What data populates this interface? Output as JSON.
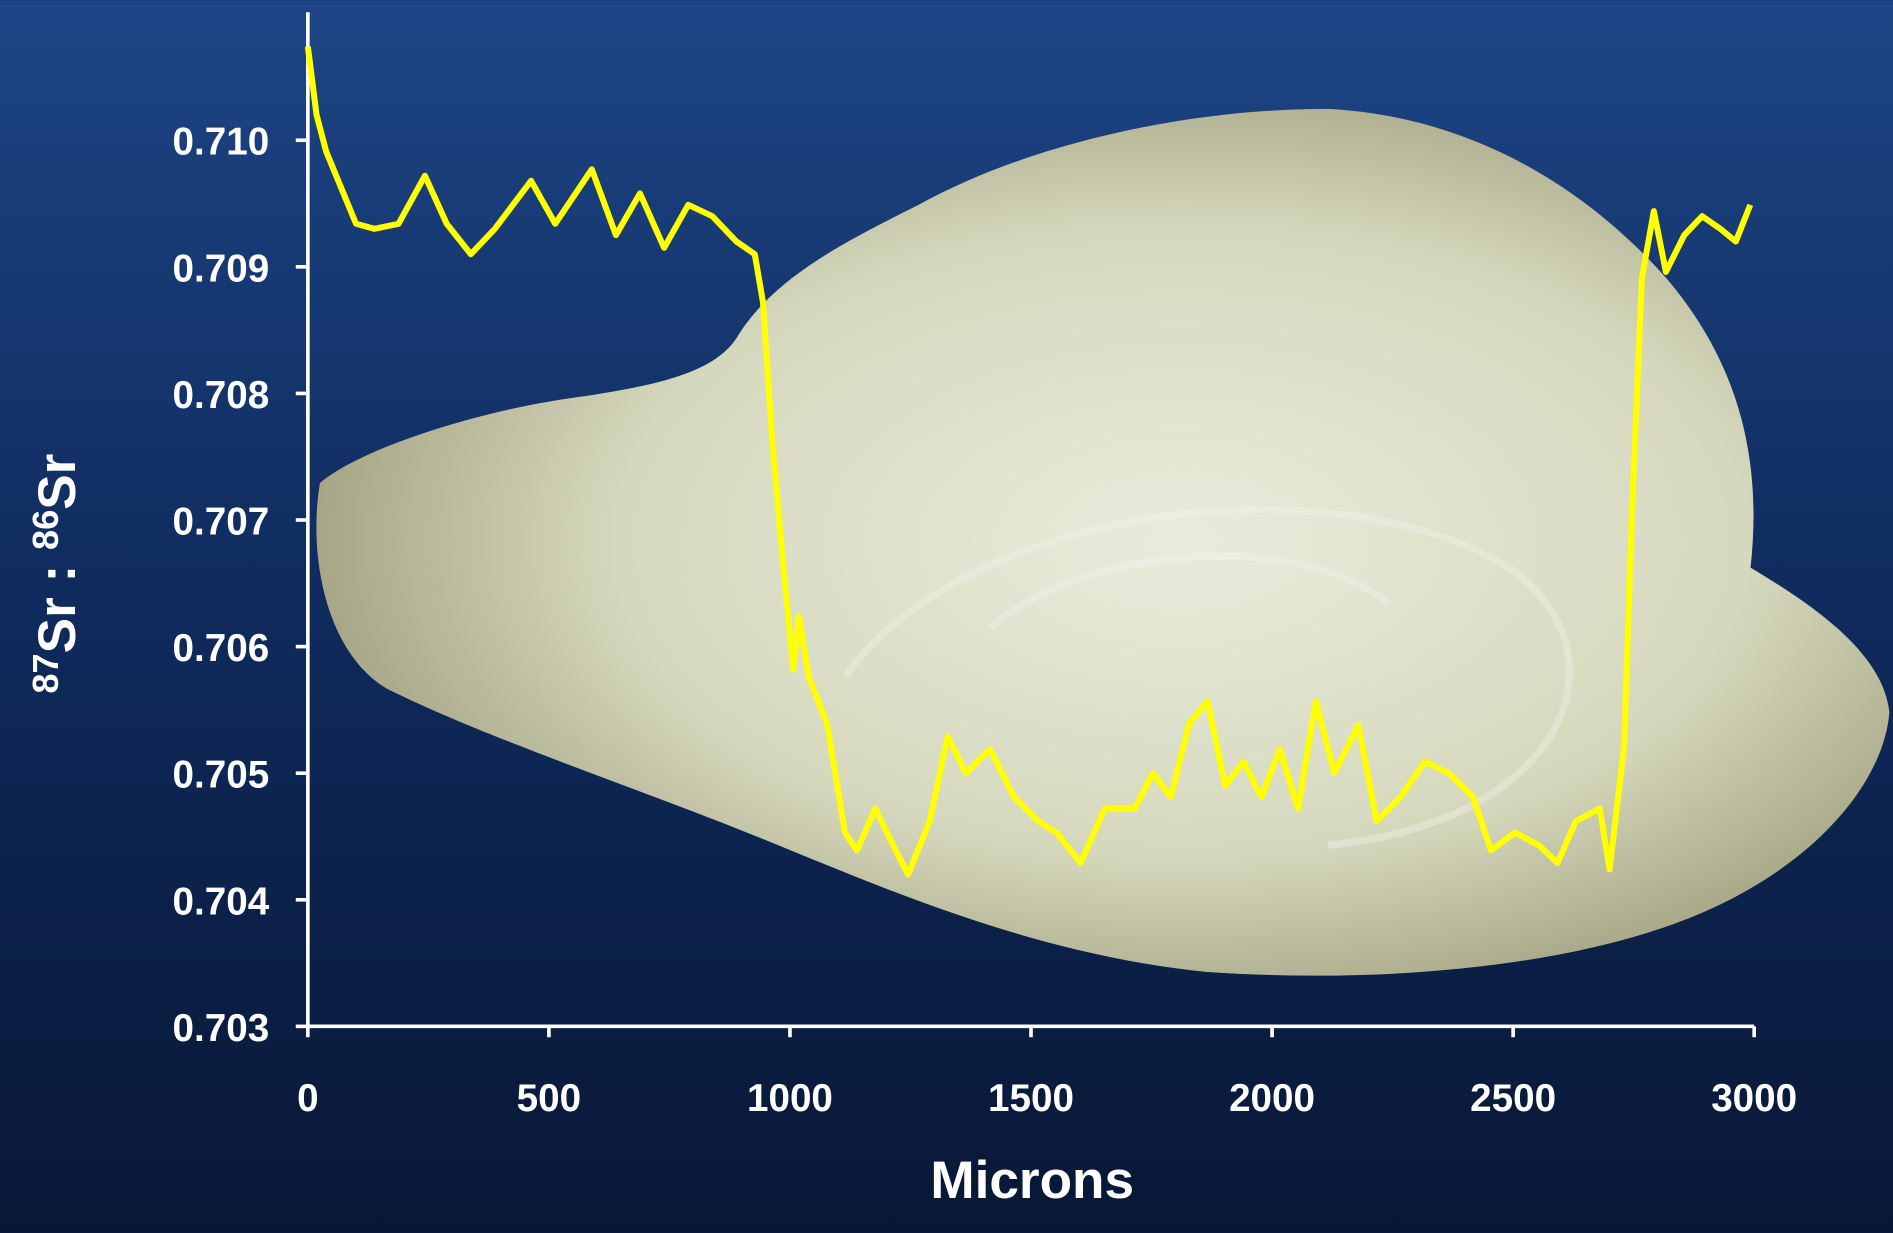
{
  "chart_data": {
    "type": "line",
    "xlabel": "Microns",
    "ylabel": [
      "87",
      "Sr : ",
      "86",
      "Sr"
    ],
    "xlim": [
      0,
      3000
    ],
    "xticks": [
      0,
      500,
      1000,
      1500,
      2000,
      2500,
      3000
    ],
    "ylim": [
      0.703,
      0.7113
    ],
    "yticks": [
      0.703,
      0.704,
      0.705,
      0.706,
      0.707,
      0.708,
      0.709,
      {
        "value": 0.71,
        "label": "0.710"
      }
    ],
    "series": [
      {
        "color": "#ffff00",
        "x": [
          0,
          18,
          38,
          63,
          100,
          138,
          188,
          243,
          288,
          338,
          388,
          463,
          513,
          589,
          639,
          689,
          739,
          789,
          839,
          889,
          927,
          944,
          964,
          989,
          1007,
          1019,
          1039,
          1077,
          1114,
          1139,
          1177,
          1214,
          1245,
          1290,
          1327,
          1365,
          1415,
          1465,
          1515,
          1553,
          1603,
          1653,
          1715,
          1753,
          1790,
          1828,
          1866,
          1903,
          1941,
          1978,
          2016,
          2054,
          2091,
          2129,
          2179,
          2217,
          2266,
          2317,
          2367,
          2417,
          2454,
          2504,
          2554,
          2592,
          2630,
          2680,
          2700,
          2730,
          2747,
          2767,
          2792,
          2817,
          2855,
          2892,
          2930,
          2962,
          2992
        ],
        "values": [
          0.71074,
          0.7102,
          0.70991,
          0.70968,
          0.70934,
          0.7093,
          0.70934,
          0.70972,
          0.70934,
          0.7091,
          0.7093,
          0.70968,
          0.70934,
          0.70977,
          0.70925,
          0.70958,
          0.70915,
          0.70949,
          0.7094,
          0.7092,
          0.7091,
          0.70872,
          0.70758,
          0.70653,
          0.70582,
          0.70624,
          0.70576,
          0.70539,
          0.70453,
          0.70439,
          0.70472,
          0.70443,
          0.7042,
          0.70462,
          0.70529,
          0.705,
          0.70519,
          0.70481,
          0.70462,
          0.70453,
          0.70429,
          0.70472,
          0.70472,
          0.705,
          0.70481,
          0.70539,
          0.70557,
          0.7049,
          0.70509,
          0.70481,
          0.70519,
          0.70472,
          0.70557,
          0.705,
          0.70538,
          0.70462,
          0.70481,
          0.70509,
          0.705,
          0.70481,
          0.70439,
          0.70453,
          0.70443,
          0.70429,
          0.70462,
          0.70472,
          0.70424,
          0.7052,
          0.7071,
          0.70891,
          0.70944,
          0.70896,
          0.70925,
          0.7094,
          0.7093,
          0.7092,
          0.70949
        ]
      }
    ]
  }
}
